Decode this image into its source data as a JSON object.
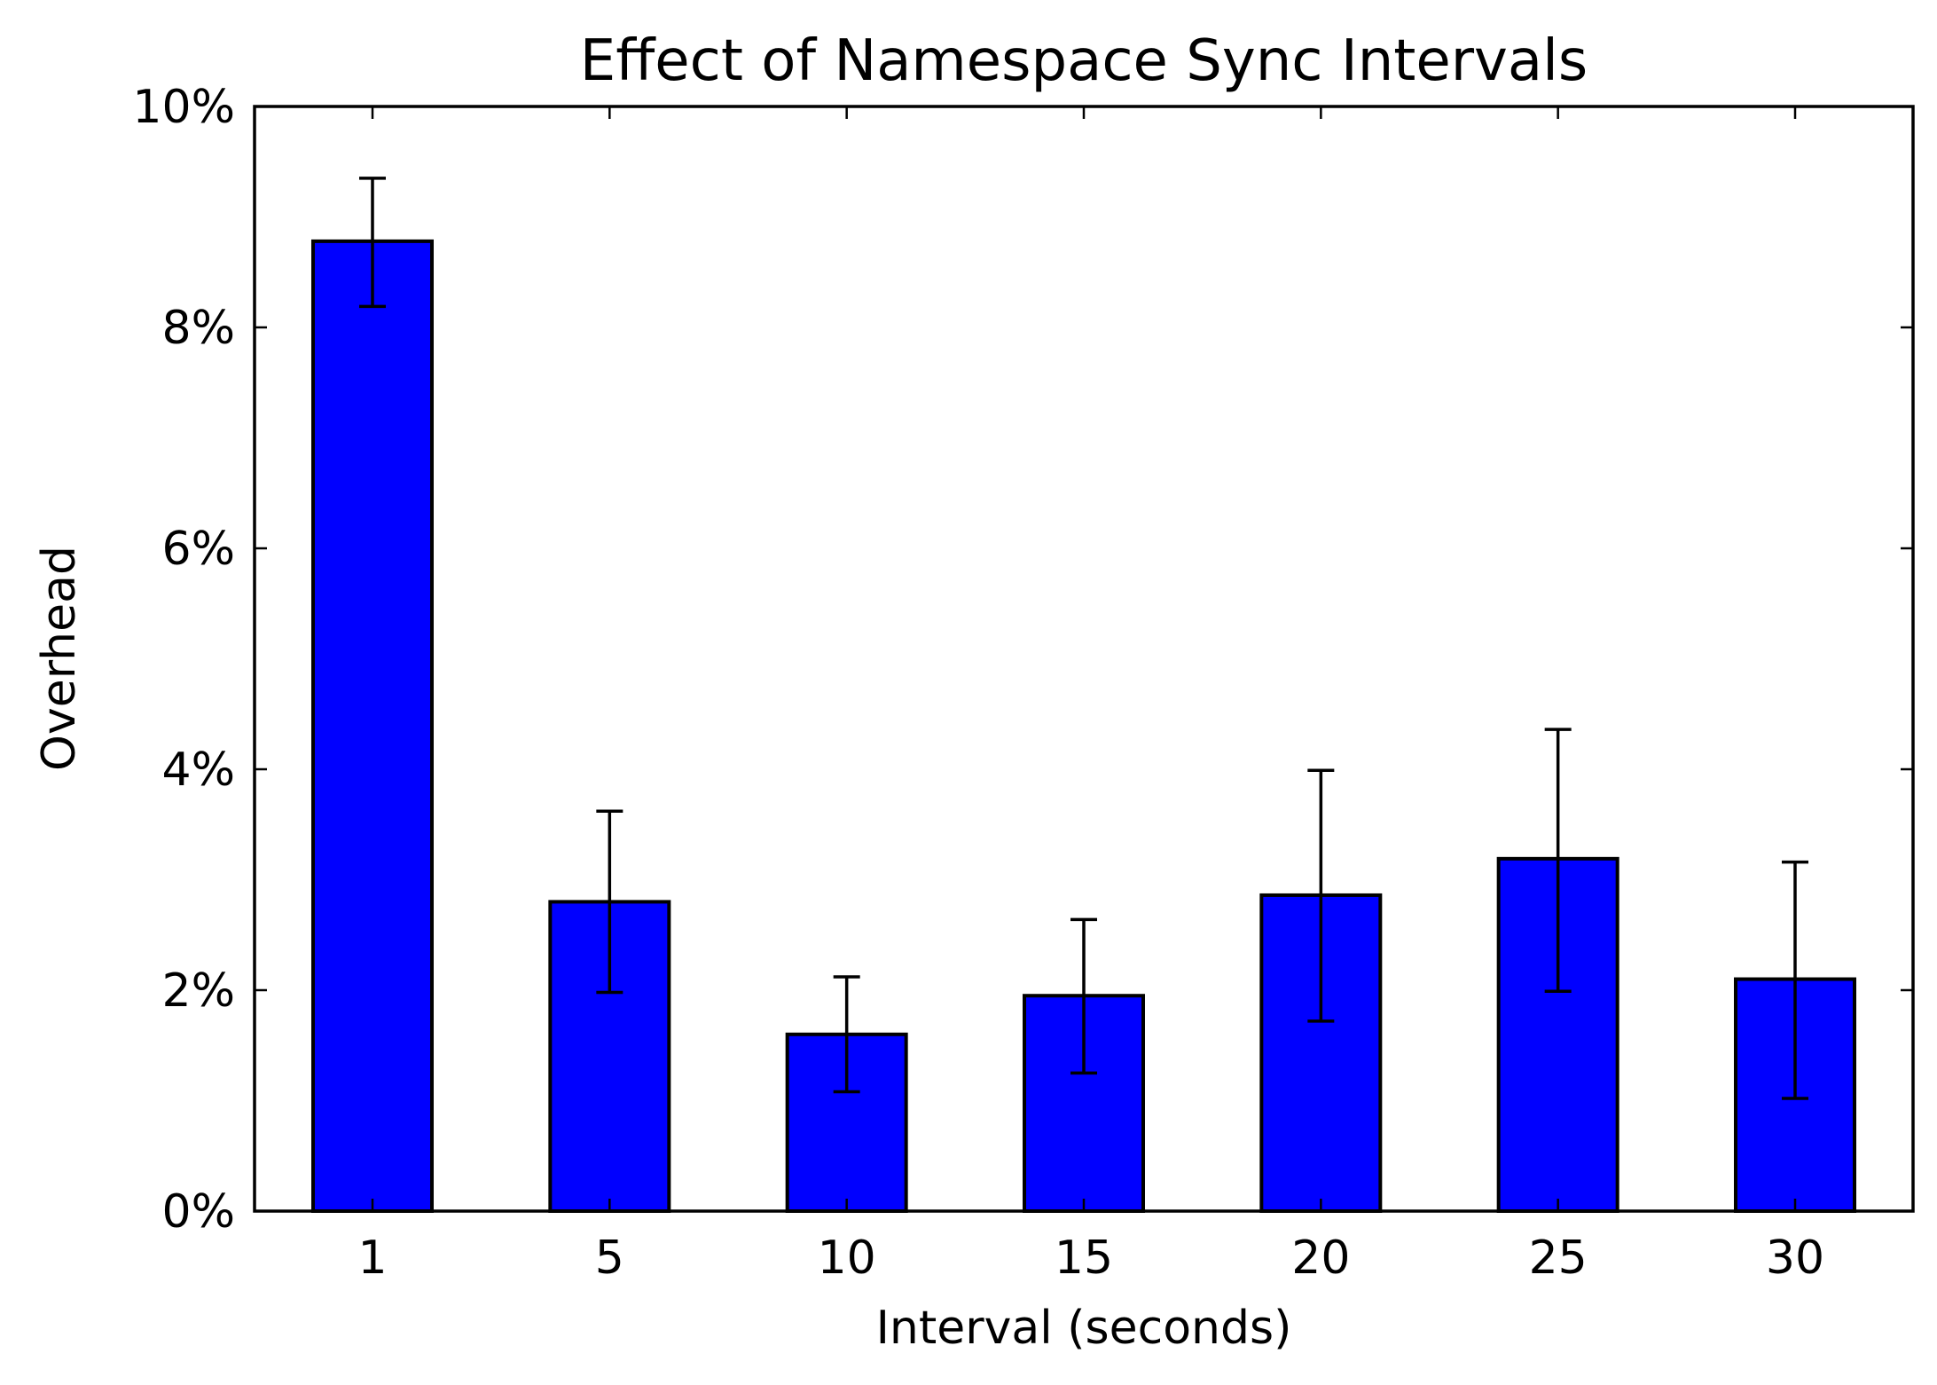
{
  "chart_data": {
    "type": "bar",
    "title": "Effect of Namespace Sync Intervals",
    "xlabel": "Interval (seconds)",
    "ylabel": "Overhead",
    "categories": [
      "1",
      "5",
      "10",
      "15",
      "20",
      "25",
      "30"
    ],
    "values": [
      8.78,
      2.8,
      1.6,
      1.95,
      2.86,
      3.19,
      2.1
    ],
    "error_bars": [
      {
        "low": 8.19,
        "high": 9.35
      },
      {
        "low": 1.98,
        "high": 3.62
      },
      {
        "low": 1.08,
        "high": 2.12
      },
      {
        "low": 1.25,
        "high": 2.64
      },
      {
        "low": 1.72,
        "high": 3.99
      },
      {
        "low": 1.99,
        "high": 4.36
      },
      {
        "low": 1.02,
        "high": 3.16
      }
    ],
    "ylim": [
      0,
      10
    ],
    "yticks": [
      0,
      2,
      4,
      6,
      8,
      10
    ],
    "ytick_labels": [
      "0%",
      "2%",
      "4%",
      "6%",
      "8%",
      "10%"
    ],
    "grid": false,
    "bar_color": "#0000ff",
    "edge_color": "#000000"
  }
}
